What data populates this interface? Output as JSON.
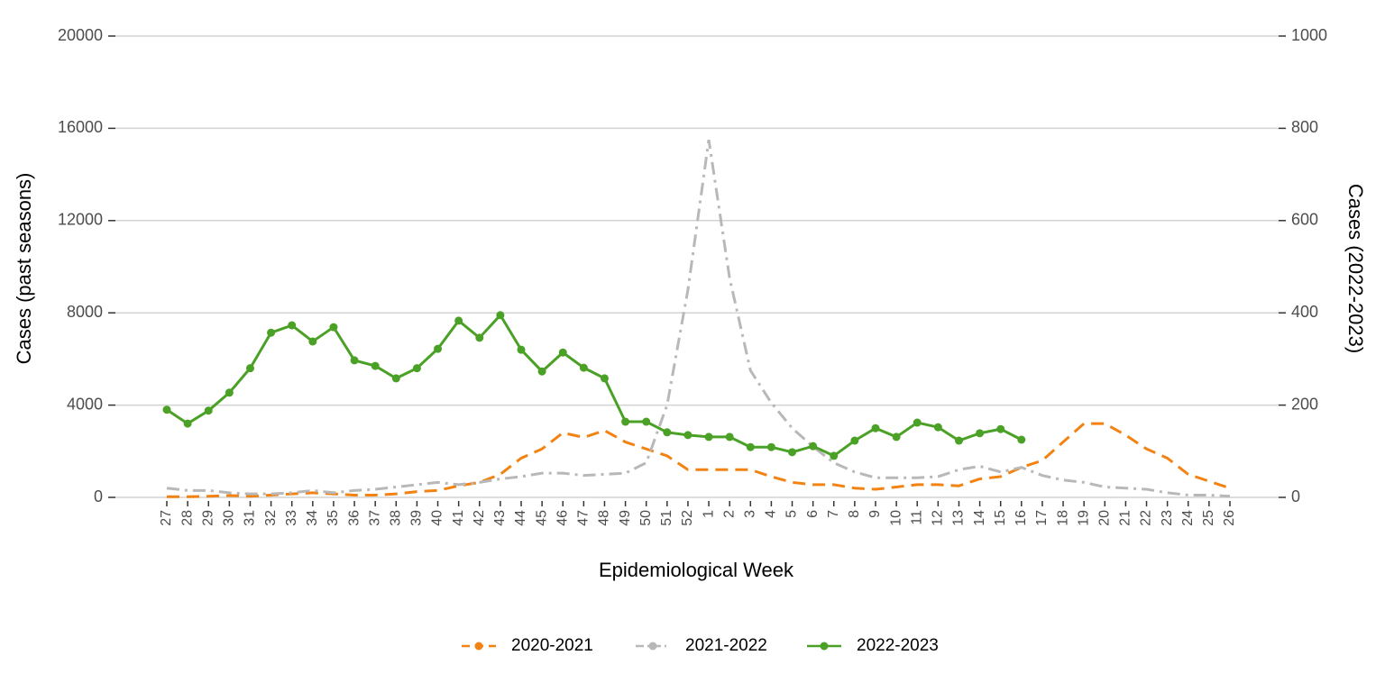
{
  "chart_data": {
    "type": "line",
    "xlabel": "Epidemiological Week",
    "ylabel": "Cases (past seasons)",
    "y2label": "Cases (2022-2023)",
    "categories": [
      "27",
      "28",
      "29",
      "30",
      "31",
      "32",
      "33",
      "34",
      "35",
      "36",
      "37",
      "38",
      "39",
      "40",
      "41",
      "42",
      "43",
      "44",
      "45",
      "46",
      "47",
      "48",
      "49",
      "50",
      "51",
      "52",
      "1",
      "2",
      "3",
      "4",
      "5",
      "6",
      "7",
      "8",
      "9",
      "10",
      "11",
      "12",
      "13",
      "14",
      "15",
      "16",
      "17",
      "18",
      "19",
      "20",
      "21",
      "22",
      "23",
      "24",
      "25",
      "26"
    ],
    "ylim": [
      0,
      20000
    ],
    "yticks": [
      0,
      4000,
      8000,
      12000,
      16000,
      20000
    ],
    "y2lim": [
      0,
      1000
    ],
    "y2ticks": [
      0,
      200,
      400,
      600,
      800,
      1000
    ],
    "grid": true,
    "legend": "bottom",
    "series": [
      {
        "name": "2020-2021",
        "color": "#f28313",
        "dash": "dashed",
        "values": [
          30,
          30,
          50,
          80,
          50,
          100,
          150,
          200,
          150,
          100,
          100,
          150,
          250,
          300,
          500,
          650,
          1000,
          1700,
          2100,
          2800,
          2600,
          2900,
          2400,
          2100,
          1800,
          1200,
          1200,
          1200,
          1200,
          900,
          650,
          550,
          550,
          400,
          350,
          450,
          550,
          550,
          500,
          800,
          900,
          1300,
          1600,
          2400,
          3200,
          3200,
          2700,
          2100,
          1700,
          1000,
          700,
          400
        ]
      },
      {
        "name": "2021-2022",
        "color": "#b8b8b8",
        "dash": "dashdot",
        "values": [
          400,
          300,
          300,
          200,
          150,
          150,
          200,
          300,
          200,
          300,
          350,
          450,
          550,
          650,
          550,
          650,
          800,
          900,
          1050,
          1050,
          950,
          1000,
          1050,
          1500,
          4000,
          9000,
          15500,
          9500,
          5500,
          4100,
          3000,
          2200,
          1500,
          1100,
          850,
          850,
          850,
          900,
          1200,
          1350,
          1100,
          1300,
          950,
          750,
          650,
          450,
          400,
          350,
          200,
          100,
          100,
          50
        ]
      },
      {
        "name": "2022-2023",
        "color": "#4aa126",
        "dash": "solid",
        "markers": true,
        "axis": "y2",
        "values": [
          190,
          160,
          188,
          227,
          280,
          357,
          373,
          338,
          369,
          297,
          285,
          258,
          280,
          322,
          383,
          346,
          395,
          320,
          273,
          314,
          281,
          258,
          164,
          164,
          141,
          135,
          131,
          131,
          109,
          109,
          98,
          111,
          90,
          123,
          150,
          131,
          162,
          152,
          123,
          139,
          148,
          125,
          null,
          null,
          null,
          null,
          null,
          null,
          null,
          null,
          null,
          null
        ]
      }
    ]
  }
}
